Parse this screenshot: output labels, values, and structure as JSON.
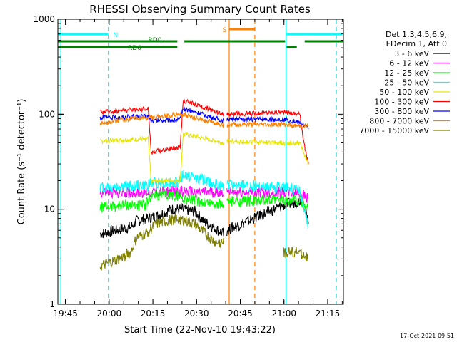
{
  "chart_data": {
    "type": "line",
    "title": "RHESSI Observing Summary Count Rates",
    "xlabel": "Start Time (22-Nov-10 19:43:22)",
    "ylabel": "Count Rate (s⁻¹ detector⁻¹)",
    "yscale": "log",
    "ylim": [
      1,
      1000
    ],
    "xlim_minutes": [
      -1,
      97
    ],
    "x_ticks": [
      {
        "label": "19:45",
        "min": 1.6
      },
      {
        "label": "20:00",
        "min": 16.6
      },
      {
        "label": "20:15",
        "min": 31.6
      },
      {
        "label": "20:30",
        "min": 46.6
      },
      {
        "label": "20:45",
        "min": 61.6
      },
      {
        "label": "21:00",
        "min": 76.6
      },
      {
        "label": "21:15",
        "min": 91.6
      }
    ],
    "y_ticks": [
      {
        "label": "1",
        "value": 1
      },
      {
        "label": "10",
        "value": 10
      },
      {
        "label": "100",
        "value": 100
      },
      {
        "label": "1000",
        "value": 1000
      }
    ],
    "legend_title": [
      "Det 1,3,4,5,6,9,",
      "FDecim 1, Att 0"
    ],
    "series": [
      {
        "name": "3 - 6 keV",
        "color": "#000000",
        "values": [
          [
            13.5,
            5.5
          ],
          [
            24,
            6.5
          ],
          [
            26,
            7.5
          ],
          [
            30,
            8
          ],
          [
            33,
            8.5
          ],
          [
            38,
            10
          ],
          [
            41,
            10
          ],
          [
            46,
            9.5
          ],
          [
            49,
            7.5
          ],
          [
            56,
            5.5
          ],
          [
            57,
            6
          ],
          [
            76.5,
            11
          ],
          [
            83,
            12.5
          ],
          [
            85,
            7
          ]
        ]
      },
      {
        "name": "6 - 12 keV",
        "color": "#ff00ff",
        "values": [
          [
            13.5,
            15
          ],
          [
            30,
            15
          ],
          [
            31,
            15
          ],
          [
            40,
            15.5
          ],
          [
            48,
            15
          ],
          [
            56,
            15
          ],
          [
            57,
            15
          ],
          [
            76.5,
            15
          ],
          [
            82,
            15
          ],
          [
            85,
            13
          ]
        ]
      },
      {
        "name": "12 - 25 keV",
        "color": "#00ff00",
        "values": [
          [
            13.5,
            10.5
          ],
          [
            22,
            11
          ],
          [
            29,
            11
          ],
          [
            31,
            14
          ],
          [
            40,
            14
          ],
          [
            42,
            13
          ],
          [
            48,
            12
          ],
          [
            56,
            11
          ],
          [
            57,
            12
          ],
          [
            76.5,
            12.5
          ],
          [
            82,
            12.5
          ],
          [
            85,
            10
          ]
        ]
      },
      {
        "name": "25 - 50 keV",
        "color": "#00ffff",
        "values": [
          [
            13.5,
            17
          ],
          [
            30,
            18
          ],
          [
            31,
            19
          ],
          [
            40,
            19
          ],
          [
            42,
            23
          ],
          [
            48,
            21
          ],
          [
            56,
            17
          ],
          [
            57,
            18
          ],
          [
            76.5,
            17
          ],
          [
            82,
            16
          ],
          [
            85,
            6.5
          ]
        ]
      },
      {
        "name": "50 - 100 keV",
        "color": "#e6e600",
        "values": [
          [
            13.5,
            52
          ],
          [
            30,
            55
          ],
          [
            31,
            20
          ],
          [
            41,
            20
          ],
          [
            42,
            62
          ],
          [
            56,
            50
          ],
          [
            57,
            52
          ],
          [
            76.5,
            50
          ],
          [
            82,
            50
          ],
          [
            85,
            30
          ]
        ]
      },
      {
        "name": "100 - 300 keV",
        "color": "#ff0000",
        "values": [
          [
            13.5,
            105
          ],
          [
            30,
            115
          ],
          [
            31,
            40
          ],
          [
            41,
            45
          ],
          [
            42,
            140
          ],
          [
            56,
            100
          ],
          [
            57,
            100
          ],
          [
            76.5,
            105
          ],
          [
            82,
            100
          ],
          [
            84,
            40
          ],
          [
            85,
            30
          ]
        ]
      },
      {
        "name": "300 - 800 keV",
        "color": "#0000ff",
        "values": [
          [
            13.5,
            92
          ],
          [
            30,
            95
          ],
          [
            31,
            85
          ],
          [
            41,
            88
          ],
          [
            42,
            115
          ],
          [
            56,
            85
          ],
          [
            57,
            88
          ],
          [
            76.5,
            88
          ],
          [
            82,
            82
          ],
          [
            85,
            70
          ]
        ]
      },
      {
        "name": "800 - 7000 keV",
        "color": "#ff8000",
        "values": [
          [
            13.5,
            80
          ],
          [
            24,
            90
          ],
          [
            30,
            92
          ],
          [
            35,
            95
          ],
          [
            40,
            100
          ],
          [
            42,
            100
          ],
          [
            48,
            88
          ],
          [
            56,
            77
          ],
          [
            57,
            78
          ],
          [
            76.5,
            78
          ],
          [
            82,
            75
          ],
          [
            85,
            75
          ]
        ]
      },
      {
        "name": "7000 - 15000 keV",
        "color": "#808000",
        "values": [
          [
            13.5,
            2.5
          ],
          [
            20,
            3
          ],
          [
            24,
            3.5
          ],
          [
            26,
            5
          ],
          [
            29,
            5.5
          ],
          [
            33,
            7
          ],
          [
            40,
            8
          ],
          [
            46,
            7
          ],
          [
            48,
            6
          ],
          [
            53,
            4.5
          ],
          [
            56,
            4.5
          ],
          [
            76.5,
            3.5
          ],
          [
            82,
            3.5
          ],
          [
            85,
            3
          ]
        ]
      }
    ],
    "state_bars": [
      {
        "label": "N",
        "color": "#00ffff",
        "level": "upper",
        "segments": [
          [
            -1,
            16.3
          ],
          [
            77.5,
            96.5
          ]
        ]
      },
      {
        "label": "S",
        "color": "#ff8000",
        "level": "upper",
        "segments": [
          [
            57.7,
            66.5
          ]
        ]
      },
      {
        "label": "RD0",
        "color": "#008000",
        "level": "mid",
        "segments": [
          [
            -1,
            40
          ],
          [
            42.4,
            77
          ],
          [
            83.7,
            97
          ]
        ]
      },
      {
        "label": "RD6",
        "color": "#008000",
        "level": "lower",
        "segments": [
          [
            -1,
            40
          ],
          [
            77.5,
            81
          ]
        ]
      }
    ],
    "vertical_lines": [
      {
        "min": 0,
        "color": "#00ffff",
        "style": "solid"
      },
      {
        "min": 16.3,
        "color": "#00ffff",
        "style": "dashed"
      },
      {
        "min": 57.8,
        "color": "#ff8000",
        "style": "solid"
      },
      {
        "min": 66.6,
        "color": "#ff8000",
        "style": "dashed"
      },
      {
        "min": 77.3,
        "color": "#00ffff",
        "style": "solid"
      },
      {
        "min": 94.6,
        "color": "#00ffff",
        "style": "dashed"
      }
    ],
    "timestamp": "17-Oct-2021 09:51"
  }
}
